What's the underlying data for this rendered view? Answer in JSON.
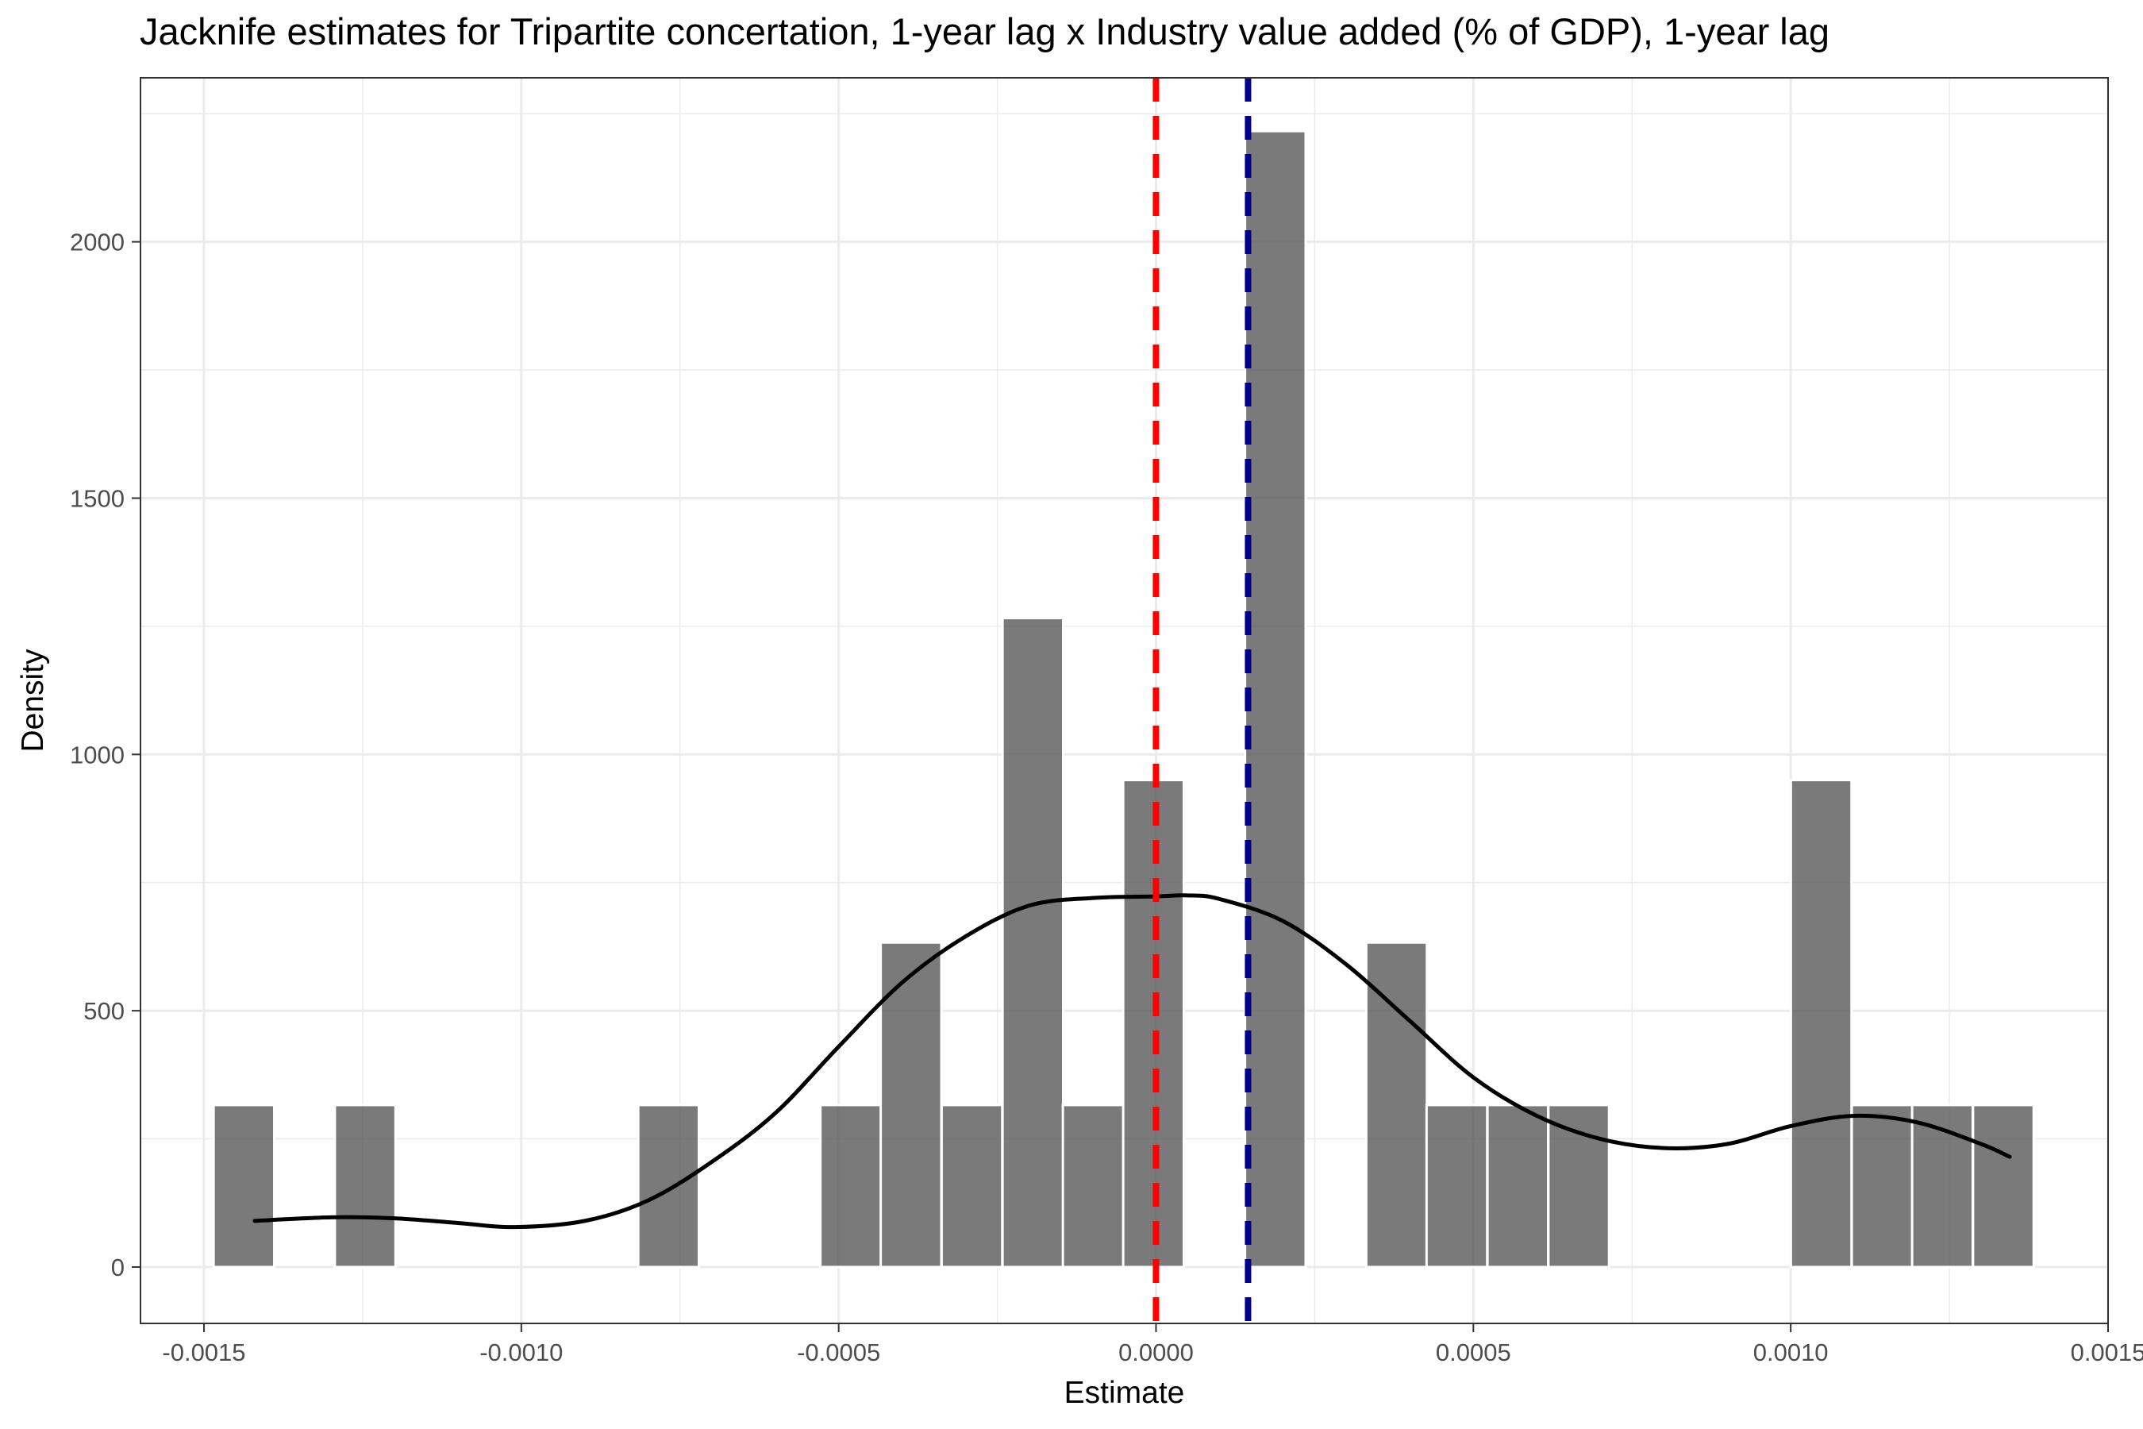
{
  "chart_data": {
    "type": "bar",
    "title": "Jacknife estimates for Tripartite concertation, 1-year lag x Industry value added (% of GDP), 1-year lag",
    "xlabel": "Estimate",
    "ylabel": "Density",
    "xlim": [
      -0.0016,
      0.0015
    ],
    "ylim": [
      -110,
      2320
    ],
    "x_ticks": [
      -0.0015,
      -0.001,
      -0.0005,
      0.0,
      0.0005,
      0.001,
      0.0015
    ],
    "x_tick_labels": [
      "-0.0015",
      "-0.0010",
      "-0.0005",
      "0.0000",
      "0.0005",
      "0.0010",
      "0.0015"
    ],
    "y_ticks": [
      0,
      500,
      1000,
      1500,
      2000
    ],
    "y_tick_labels": [
      "0",
      "500",
      "1000",
      "1500",
      "2000"
    ],
    "grid": true,
    "bin_width": 9.55e-05,
    "bins": [
      {
        "center": -0.001437,
        "density": 316
      },
      {
        "center": -0.001246,
        "density": 316
      },
      {
        "center": -0.000768,
        "density": 316
      },
      {
        "center": -0.000481,
        "density": 316
      },
      {
        "center": -0.000386,
        "density": 633
      },
      {
        "center": -0.00029,
        "density": 316
      },
      {
        "center": -0.000194,
        "density": 1266
      },
      {
        "center": -9.9e-05,
        "density": 316
      },
      {
        "center": -4e-06,
        "density": 950
      },
      {
        "center": 0.000188,
        "density": 2216
      },
      {
        "center": 0.000379,
        "density": 633
      },
      {
        "center": 0.000474,
        "density": 316
      },
      {
        "center": 0.00057,
        "density": 316
      },
      {
        "center": 0.000666,
        "density": 316
      },
      {
        "center": 0.001048,
        "density": 950
      },
      {
        "center": 0.001144,
        "density": 316
      },
      {
        "center": 0.001239,
        "density": 316
      },
      {
        "center": 0.001335,
        "density": 316
      }
    ],
    "density_curve": {
      "x": [
        -0.00142,
        -0.0013,
        -0.0012,
        -0.0011,
        -0.00101,
        -0.0009,
        -0.0008,
        -0.0007,
        -0.0006,
        -0.0005,
        -0.0004,
        -0.0003,
        -0.0002,
        -0.0001,
        0.0,
        5e-05,
        0.0001,
        0.0002,
        0.0003,
        0.0004,
        0.0005,
        0.0006,
        0.0007,
        0.0008,
        0.0009,
        0.001,
        0.0011,
        0.0012,
        0.0013,
        0.001345
      ],
      "y": [
        90,
        97,
        95,
        86,
        78,
        90,
        130,
        205,
        300,
        430,
        555,
        645,
        705,
        720,
        723,
        725,
        718,
        675,
        590,
        480,
        370,
        295,
        250,
        232,
        240,
        275,
        295,
        282,
        240,
        215
      ]
    },
    "reference_lines": [
      {
        "x": 0.0,
        "color": "#ff0000",
        "style": "dashed"
      },
      {
        "x": 0.000145,
        "color": "#00008b",
        "style": "dashed"
      }
    ],
    "colors": {
      "bar": "#595959",
      "bar_opacity": 0.8,
      "curve": "#000000",
      "grid": "#ebebeb",
      "panel_border": "#333333"
    }
  }
}
